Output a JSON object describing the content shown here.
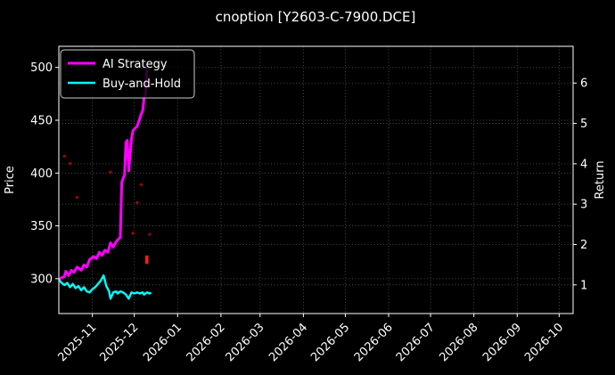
{
  "figure": {
    "title": "cnoption [Y2603-C-7900.DCE]"
  },
  "colors": {
    "background": "#000000",
    "foreground": "#ffffff",
    "grid": "rgba(255,255,255,0.35)",
    "spine": "#ffffff",
    "ai_strategy": "#ff00ff",
    "buy_and_hold": "#00ffff",
    "trade_marker": "#aa0000",
    "trade_marker_bright": "#ff1a1a",
    "legend_border": "#cccccc",
    "legend_background": "rgba(0,0,0,0.8)"
  },
  "chart_data": {
    "type": "line",
    "title": "cnoption [Y2603-C-7900.DCE]",
    "grid": true,
    "x_axis": {
      "xlim": [
        "2025-10-08",
        "2026-10-11"
      ],
      "ticks": [
        {
          "label": "2025-11",
          "date": "2025-11-01"
        },
        {
          "label": "2025-12",
          "date": "2025-12-01"
        },
        {
          "label": "2026-01",
          "date": "2026-01-01"
        },
        {
          "label": "2026-02",
          "date": "2026-02-01"
        },
        {
          "label": "2026-03",
          "date": "2026-03-01"
        },
        {
          "label": "2026-04",
          "date": "2026-04-01"
        },
        {
          "label": "2026-05",
          "date": "2026-05-01"
        },
        {
          "label": "2026-06",
          "date": "2026-06-01"
        },
        {
          "label": "2026-07",
          "date": "2026-07-01"
        },
        {
          "label": "2026-08",
          "date": "2026-08-01"
        },
        {
          "label": "2026-09",
          "date": "2026-09-01"
        },
        {
          "label": "2026-10",
          "date": "2026-10-01"
        }
      ]
    },
    "y_axis_left": {
      "label": "Price",
      "ticks": [
        300,
        350,
        400,
        450,
        500
      ],
      "ylim": [
        267,
        520
      ]
    },
    "y_axis_right": {
      "label": "Return",
      "ticks": [
        1,
        2,
        3,
        4,
        5,
        6
      ],
      "ylim": [
        0.29,
        6.91
      ]
    },
    "legend": {
      "position": "upper-left",
      "entries": [
        "AI Strategy",
        "Buy-and-Hold"
      ]
    },
    "series": [
      {
        "name": "AI Strategy",
        "type": "line",
        "axis": "left",
        "color": "#ff00ff",
        "line_width": 3,
        "points": [
          [
            "2025-10-08",
            299
          ],
          [
            "2025-10-10",
            301
          ],
          [
            "2025-10-12",
            302
          ],
          [
            "2025-10-13",
            307
          ],
          [
            "2025-10-15",
            303
          ],
          [
            "2025-10-17",
            308
          ],
          [
            "2025-10-19",
            306
          ],
          [
            "2025-10-21",
            311
          ],
          [
            "2025-10-24",
            308
          ],
          [
            "2025-10-26",
            313
          ],
          [
            "2025-10-28",
            311
          ],
          [
            "2025-10-30",
            318
          ],
          [
            "2025-11-02",
            321
          ],
          [
            "2025-11-04",
            319
          ],
          [
            "2025-11-06",
            325
          ],
          [
            "2025-11-08",
            322
          ],
          [
            "2025-11-10",
            327
          ],
          [
            "2025-11-12",
            325
          ],
          [
            "2025-11-14",
            334
          ],
          [
            "2025-11-16",
            330
          ],
          [
            "2025-11-18",
            335
          ],
          [
            "2025-11-20",
            338
          ],
          [
            "2025-11-21",
            339
          ],
          [
            "2025-11-22",
            391
          ],
          [
            "2025-11-23",
            395
          ],
          [
            "2025-11-24",
            398
          ],
          [
            "2025-11-25",
            429
          ],
          [
            "2025-11-26",
            431
          ],
          [
            "2025-11-27",
            402
          ],
          [
            "2025-11-29",
            432
          ],
          [
            "2025-11-30",
            440
          ],
          [
            "2025-12-02",
            443
          ],
          [
            "2025-12-03",
            444
          ],
          [
            "2025-12-04",
            448
          ],
          [
            "2025-12-06",
            456
          ],
          [
            "2025-12-07",
            459
          ],
          [
            "2025-12-08",
            471
          ],
          [
            "2025-12-09",
            474
          ],
          [
            "2025-12-10",
            501
          ]
        ]
      },
      {
        "name": "Buy-and-Hold",
        "type": "line",
        "axis": "left",
        "color": "#00ffff",
        "line_width": 2.4,
        "points": [
          [
            "2025-10-08",
            299
          ],
          [
            "2025-10-10",
            296
          ],
          [
            "2025-10-12",
            294
          ],
          [
            "2025-10-14",
            296
          ],
          [
            "2025-10-16",
            292
          ],
          [
            "2025-10-18",
            295
          ],
          [
            "2025-10-20",
            291
          ],
          [
            "2025-10-22",
            293
          ],
          [
            "2025-10-24",
            289
          ],
          [
            "2025-10-26",
            292
          ],
          [
            "2025-10-28",
            288
          ],
          [
            "2025-10-30",
            287
          ],
          [
            "2025-11-01",
            290
          ],
          [
            "2025-11-03",
            292
          ],
          [
            "2025-11-05",
            295
          ],
          [
            "2025-11-07",
            298
          ],
          [
            "2025-11-09",
            303
          ],
          [
            "2025-11-11",
            293
          ],
          [
            "2025-11-13",
            288
          ],
          [
            "2025-11-14",
            281
          ],
          [
            "2025-11-16",
            287
          ],
          [
            "2025-11-18",
            288
          ],
          [
            "2025-11-19",
            286
          ],
          [
            "2025-11-21",
            288
          ],
          [
            "2025-11-23",
            287
          ],
          [
            "2025-11-25",
            285
          ],
          [
            "2025-11-27",
            281
          ],
          [
            "2025-11-29",
            287
          ],
          [
            "2025-12-01",
            286
          ],
          [
            "2025-12-03",
            287
          ],
          [
            "2025-12-05",
            286
          ],
          [
            "2025-12-07",
            287
          ],
          [
            "2025-12-08",
            285
          ],
          [
            "2025-12-10",
            287
          ],
          [
            "2025-12-12",
            286
          ],
          [
            "2025-12-13",
            287
          ]
        ]
      },
      {
        "name": "trade-markers",
        "type": "scatter",
        "axis": "left",
        "color": "#aa0000",
        "marker_size": 1.6,
        "points": [
          [
            "2025-10-12",
            416
          ],
          [
            "2025-10-16",
            409
          ],
          [
            "2025-10-21",
            377
          ],
          [
            "2025-11-14",
            401
          ],
          [
            "2025-11-30",
            343
          ],
          [
            "2025-12-03",
            372
          ],
          [
            "2025-12-06",
            389
          ],
          [
            "2025-12-12",
            342
          ]
        ]
      },
      {
        "name": "trade-marker-dash",
        "type": "line",
        "axis": "left",
        "color": "#ff1a1a",
        "line_width": 3.5,
        "points": [
          [
            "2025-12-10",
            314
          ],
          [
            "2025-12-10",
            322
          ]
        ]
      }
    ]
  }
}
